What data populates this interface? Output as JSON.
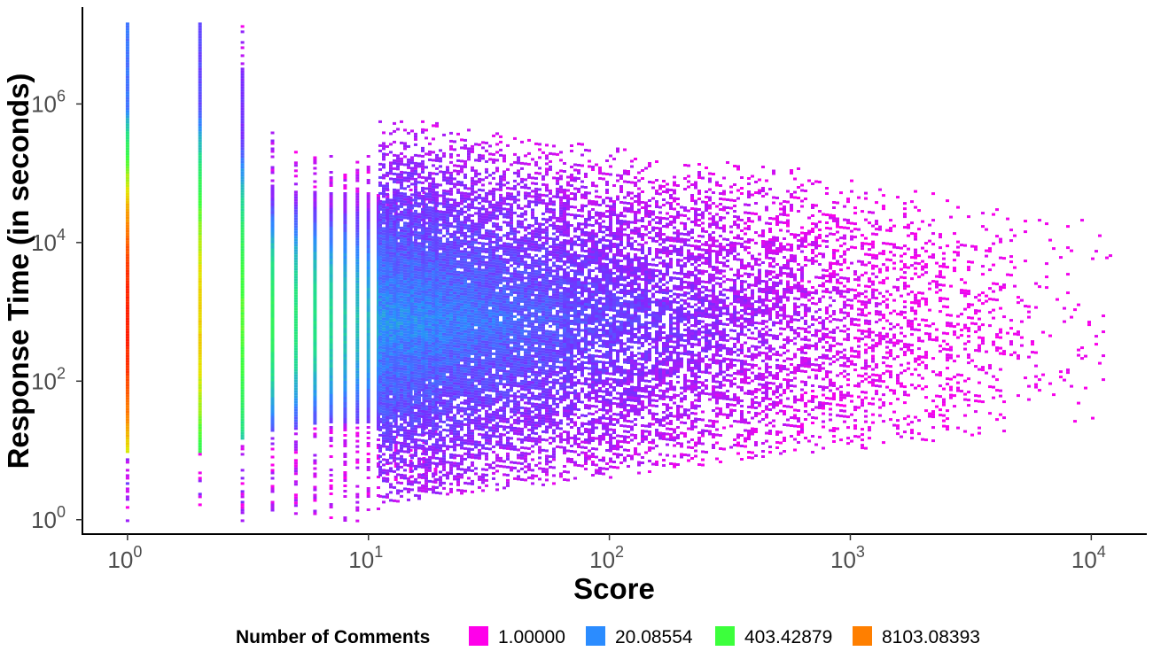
{
  "chart_data": {
    "type": "heatmap",
    "title": "",
    "xlabel": "Score",
    "ylabel": "Response Time (in seconds)",
    "x_scale": "log10",
    "y_scale": "log10",
    "xlim": [
      0.65,
      17000
    ],
    "ylim": [
      0.62,
      25000000
    ],
    "x_ticks": [
      {
        "value": 1,
        "base": "10",
        "exp": "0"
      },
      {
        "value": 10,
        "base": "10",
        "exp": "1"
      },
      {
        "value": 100,
        "base": "10",
        "exp": "2"
      },
      {
        "value": 1000,
        "base": "10",
        "exp": "3"
      },
      {
        "value": 10000,
        "base": "10",
        "exp": "4"
      }
    ],
    "y_ticks": [
      {
        "value": 1,
        "base": "10",
        "exp": "0"
      },
      {
        "value": 100,
        "base": "10",
        "exp": "2"
      },
      {
        "value": 10000,
        "base": "10",
        "exp": "4"
      },
      {
        "value": 1000000,
        "base": "10",
        "exp": "6"
      }
    ],
    "grid": false,
    "legend": {
      "title": "Number of Comments",
      "placement": "bottom",
      "entries": [
        {
          "label": "1.00000",
          "color": "#ff00ea"
        },
        {
          "label": "20.08554",
          "color": "#2b8cff"
        },
        {
          "label": "403.42879",
          "color": "#3cff3c"
        },
        {
          "label": "8103.08393",
          "color": "#ff7f00"
        }
      ]
    },
    "color_stops": [
      {
        "log_count": 0,
        "color": "#ff00ea"
      },
      {
        "log_count": 1.5,
        "color": "#7a2bff"
      },
      {
        "log_count": 3,
        "color": "#2b8cff"
      },
      {
        "log_count": 4.5,
        "color": "#22e08a"
      },
      {
        "log_count": 6,
        "color": "#3cff3c"
      },
      {
        "log_count": 7.5,
        "color": "#e6e600"
      },
      {
        "log_count": 9,
        "color": "#ff7f00"
      },
      {
        "log_count": 10.5,
        "color": "#ff1a00"
      }
    ],
    "columns": [
      {
        "score": 1,
        "y_min": 1,
        "y_max": 15000000,
        "core_min": 10,
        "core_max": 15000000,
        "peak_count": 35000,
        "peak_y": 800
      },
      {
        "score": 2,
        "y_min": 1,
        "y_max": 15000000,
        "core_min": 10,
        "core_max": 15000000,
        "peak_count": 2500,
        "peak_y": 800
      },
      {
        "score": 3,
        "y_min": 1,
        "y_max": 15000000,
        "core_min": 15,
        "core_max": 3000000,
        "peak_count": 500,
        "peak_y": 800
      },
      {
        "score": 4,
        "y_min": 1,
        "y_max": 400000,
        "core_min": 20,
        "core_max": 70000,
        "peak_count": 200,
        "peak_y": 800
      },
      {
        "score": 5,
        "y_min": 1,
        "y_max": 300000,
        "core_min": 20,
        "core_max": 60000,
        "peak_count": 120,
        "peak_y": 800
      },
      {
        "score": 6,
        "y_min": 1,
        "y_max": 250000,
        "core_min": 25,
        "core_max": 60000,
        "peak_count": 100,
        "peak_y": 800
      },
      {
        "score": 7,
        "y_min": 1,
        "y_max": 200000,
        "core_min": 25,
        "core_max": 55000,
        "peak_count": 80,
        "peak_y": 800
      },
      {
        "score": 8,
        "y_min": 1,
        "y_max": 200000,
        "core_min": 25,
        "core_max": 55000,
        "peak_count": 60,
        "peak_y": 800
      },
      {
        "score": 9,
        "y_min": 1,
        "y_max": 180000,
        "core_min": 25,
        "core_max": 55000,
        "peak_count": 50,
        "peak_y": 800
      },
      {
        "score": 10,
        "y_min": 1,
        "y_max": 200000,
        "core_min": 25,
        "core_max": 55000,
        "peak_count": 40,
        "peak_y": 800
      },
      {
        "score": 11,
        "y_min": 1,
        "y_max": 60000,
        "core_min": 20,
        "core_max": 50000,
        "peak_count": 36,
        "peak_y": 800
      },
      {
        "score": 12,
        "y_min": 3,
        "y_max": 60000,
        "core_min": 20,
        "core_max": 50000,
        "peak_count": 32,
        "peak_y": 800
      },
      {
        "score": 13,
        "y_min": 3,
        "y_max": 60000,
        "core_min": 25,
        "core_max": 50000,
        "peak_count": 30,
        "peak_y": 800
      },
      {
        "score": 15,
        "y_min": 3,
        "y_max": 60000,
        "core_min": 25,
        "core_max": 50000,
        "peak_count": 28,
        "peak_y": 800
      },
      {
        "score": 17,
        "y_min": 3,
        "y_max": 60000,
        "core_min": 25,
        "core_max": 50000,
        "peak_count": 26,
        "peak_y": 800
      },
      {
        "score": 19,
        "y_min": 3,
        "y_max": 60000,
        "core_min": 30,
        "core_max": 50000,
        "peak_count": 25,
        "peak_y": 800
      }
    ],
    "cloud": {
      "description_free": true,
      "x_from": 11,
      "x_to": 12000,
      "center_log_y": 2.9,
      "max_count_log": 3.2
    }
  }
}
